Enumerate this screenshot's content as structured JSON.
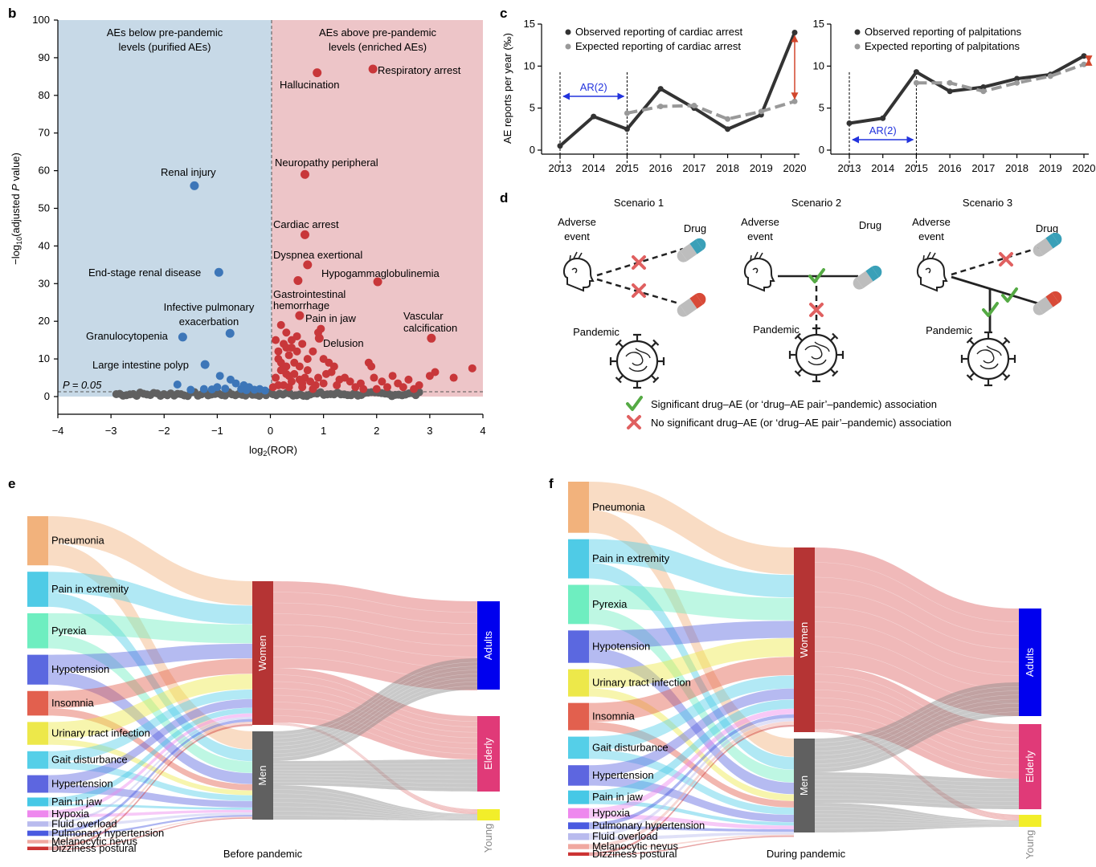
{
  "figure": {
    "bg": "#ffffff"
  },
  "panels": {
    "b": "b",
    "c": "c",
    "d": "d",
    "e": "e",
    "f": "f"
  },
  "colors": {
    "blue_bg": "#c7d9e7",
    "red_bg": "#edc5c8",
    "blue_dot": "#3d76b8",
    "red_dot": "#c8373a",
    "grey_dot": "#606060",
    "arrow_blue": "#2233dd",
    "arrow_red": "#d2462c",
    "check_green": "#55aa44",
    "cross_red": "#e06060"
  },
  "chart_data": [
    {
      "id": "volcano",
      "type": "scatter",
      "xlabel": "log2(ROR)",
      "ylabel": "−log10(adjusted P value)",
      "xlim": [
        -4,
        4
      ],
      "ylim": [
        0,
        100
      ],
      "xticks": [
        "−4",
        "−3",
        "−2",
        "−1",
        "0",
        "1",
        "2",
        "3",
        "4"
      ],
      "yticks": [
        "0",
        "10",
        "20",
        "30",
        "40",
        "50",
        "60",
        "70",
        "80",
        "90",
        "100"
      ],
      "region_left": [
        "AEs below pre-pandemic",
        "levels (purified AEs)"
      ],
      "region_right": [
        "AEs above pre-pandemic",
        "levels (enriched AEs)"
      ],
      "threshold_label": "P = 0.05",
      "threshold": 1.3,
      "labeled_points": [
        {
          "x": 0.88,
          "y": 86,
          "label": "Hallucination",
          "group": "enriched"
        },
        {
          "x": 1.93,
          "y": 87,
          "label": "Respiratory arrest",
          "group": "enriched"
        },
        {
          "x": 0.65,
          "y": 59,
          "label": "Neuropathy peripheral",
          "group": "enriched"
        },
        {
          "x": 0.65,
          "y": 43,
          "label": "Cardiac arrest",
          "group": "enriched"
        },
        {
          "x": 0.7,
          "y": 35,
          "label": "Dyspnea exertional",
          "group": "enriched"
        },
        {
          "x": 2.02,
          "y": 30.5,
          "label": "Hypogammaglobulinemia",
          "group": "enriched"
        },
        {
          "x": 0.52,
          "y": 30.8,
          "label": "Gastrointestinal hemorrhage",
          "group": "enriched"
        },
        {
          "x": 0.55,
          "y": 21.5,
          "label": "Pain in jaw",
          "group": "enriched"
        },
        {
          "x": 3.03,
          "y": 15.5,
          "label": "Vascular calcification",
          "group": "enriched"
        },
        {
          "x": 0.92,
          "y": 15.5,
          "label": "Delusion",
          "group": "enriched"
        },
        {
          "x": -1.43,
          "y": 56,
          "label": "Renal injury",
          "group": "purified"
        },
        {
          "x": -0.97,
          "y": 33,
          "label": "End-stage renal disease",
          "group": "purified"
        },
        {
          "x": -0.76,
          "y": 16.8,
          "label": "Infective pulmonary exacerbation",
          "group": "purified"
        },
        {
          "x": -1.65,
          "y": 15.8,
          "label": "Granulocytopenia",
          "group": "purified"
        },
        {
          "x": -1.23,
          "y": 8.5,
          "label": "Large intestine polyp",
          "group": "purified"
        }
      ],
      "extra_points": {
        "enriched": [
          [
            0.2,
            19
          ],
          [
            0.3,
            17
          ],
          [
            0.25,
            14
          ],
          [
            0.4,
            13
          ],
          [
            0.35,
            11
          ],
          [
            0.15,
            10
          ],
          [
            0.5,
            12
          ],
          [
            0.6,
            14
          ],
          [
            0.45,
            9
          ],
          [
            0.2,
            7
          ],
          [
            0.3,
            6
          ],
          [
            0.1,
            5
          ],
          [
            0.55,
            8
          ],
          [
            0.7,
            10
          ],
          [
            0.8,
            12
          ],
          [
            0.9,
            17
          ],
          [
            0.95,
            18
          ],
          [
            1.0,
            10
          ],
          [
            1.1,
            9
          ],
          [
            1.2,
            8
          ],
          [
            1.05,
            6
          ],
          [
            0.65,
            5
          ],
          [
            0.75,
            4
          ],
          [
            0.4,
            4
          ],
          [
            0.25,
            3
          ],
          [
            0.15,
            3
          ],
          [
            0.05,
            2.5
          ],
          [
            0.35,
            2.5
          ],
          [
            0.6,
            2.5
          ],
          [
            0.85,
            3
          ],
          [
            1.0,
            3.5
          ],
          [
            1.3,
            4.5
          ],
          [
            1.4,
            5
          ],
          [
            1.5,
            4
          ],
          [
            1.7,
            3.5
          ],
          [
            1.85,
            9
          ],
          [
            1.9,
            8
          ],
          [
            1.95,
            5
          ],
          [
            2.1,
            4
          ],
          [
            2.3,
            5.5
          ],
          [
            2.4,
            3.5
          ],
          [
            2.6,
            4.5
          ],
          [
            2.8,
            3
          ],
          [
            3.0,
            5.5
          ],
          [
            3.1,
            6.5
          ],
          [
            3.45,
            5
          ],
          [
            3.8,
            7.5
          ],
          [
            2.2,
            2.5
          ],
          [
            2.5,
            2.5
          ],
          [
            1.6,
            2.5
          ],
          [
            0.45,
            6
          ],
          [
            0.3,
            8
          ],
          [
            0.15,
            12
          ],
          [
            0.5,
            16
          ],
          [
            0.4,
            15
          ],
          [
            0.3,
            13
          ],
          [
            0.1,
            15
          ],
          [
            0.2,
            9
          ],
          [
            0.7,
            7
          ],
          [
            0.9,
            5
          ],
          [
            1.15,
            6.5
          ],
          [
            0.55,
            4.5
          ],
          [
            0.35,
            5.5
          ],
          [
            0.6,
            3.5
          ],
          [
            1.25,
            3
          ],
          [
            0.8,
            2
          ],
          [
            2.0,
            2
          ],
          [
            2.7,
            2
          ],
          [
            1.75,
            2
          ]
        ],
        "purified": [
          [
            -0.95,
            5.5
          ],
          [
            -0.75,
            4.5
          ],
          [
            -1.75,
            3.2
          ],
          [
            -0.5,
            3
          ],
          [
            -0.4,
            2.5
          ],
          [
            -0.2,
            2
          ],
          [
            -0.55,
            2
          ],
          [
            -0.65,
            3.5
          ],
          [
            -1.0,
            2.5
          ],
          [
            -1.25,
            2
          ],
          [
            -0.3,
            1.8
          ],
          [
            -0.1,
            1.6
          ],
          [
            -0.45,
            1.7
          ],
          [
            -0.85,
            2.1
          ],
          [
            -1.1,
            1.9
          ],
          [
            -1.5,
            1.8
          ]
        ],
        "null_range": [
          -2.9,
          2.8
        ]
      }
    },
    {
      "id": "cardiac",
      "type": "line",
      "ylabel": "AE reports per year (‰)",
      "categories": [
        "2013",
        "2014",
        "2015",
        "2016",
        "2017",
        "2018",
        "2019",
        "2020"
      ],
      "ylim": [
        0,
        15
      ],
      "yticks": [
        "0",
        "5",
        "10",
        "15"
      ],
      "series": [
        {
          "name": "Observed reporting of cardiac arrest",
          "values": [
            0.5,
            4.0,
            2.5,
            7.3,
            5.0,
            2.5,
            4.2,
            14.0
          ],
          "color": "#333333",
          "style": "solid"
        },
        {
          "name": "Expected reporting of cardiac arrest",
          "values": [
            null,
            null,
            4.4,
            5.2,
            5.3,
            3.7,
            4.6,
            5.8
          ],
          "color": "#999999",
          "style": "dashed"
        }
      ],
      "ar_label": "AR(2)"
    },
    {
      "id": "palpitations",
      "type": "line",
      "categories": [
        "2013",
        "2014",
        "2015",
        "2016",
        "2017",
        "2018",
        "2019",
        "2020"
      ],
      "ylim": [
        0,
        15
      ],
      "yticks": [
        "0",
        "5",
        "10",
        "15"
      ],
      "series": [
        {
          "name": "Observed reporting of palpitations",
          "values": [
            3.2,
            3.8,
            9.3,
            7.0,
            7.5,
            8.5,
            9.0,
            11.2
          ],
          "color": "#333333",
          "style": "solid"
        },
        {
          "name": "Expected reporting of palpitations",
          "values": [
            null,
            null,
            8.0,
            8.0,
            7.0,
            8.0,
            8.8,
            10.2
          ],
          "color": "#999999",
          "style": "dashed"
        }
      ],
      "ar_label": "AR(2)"
    }
  ],
  "scenarios": {
    "titles": [
      "Scenario 1",
      "Scenario 2",
      "Scenario 3"
    ],
    "adverse_event": [
      "Adverse",
      "event"
    ],
    "drug": "Drug",
    "pandemic": "Pandemic",
    "legend_sig": "Significant drug–AE (or ‘drug–AE pair’–pandemic) association",
    "legend_nonsig": "No significant drug–AE (or ‘drug–AE pair’–pandemic) association"
  },
  "sankey_before": {
    "caption": "Before pandemic",
    "aes": [
      {
        "label": "Pneumonia",
        "color": "#f2b27c"
      },
      {
        "label": "Pain in extremity",
        "color": "#4fcbe6"
      },
      {
        "label": "Pyrexia",
        "color": "#6eeec0"
      },
      {
        "label": "Hypotension",
        "color": "#5b68e0"
      },
      {
        "label": "Insomnia",
        "color": "#e2604e"
      },
      {
        "label": "Urinary tract infection",
        "color": "#ede84a"
      },
      {
        "label": "Gait disturbance",
        "color": "#55cfe8"
      },
      {
        "label": "Hypertension",
        "color": "#5d66e0"
      },
      {
        "label": "Pain in jaw",
        "color": "#46c8e6"
      },
      {
        "label": "Hypoxia",
        "color": "#ee88ee"
      },
      {
        "label": "Fluid overload",
        "color": "#b9bbee"
      },
      {
        "label": "Pulmonary hypertension",
        "color": "#4a5ae0"
      },
      {
        "label": "Melanocytic nevus",
        "color": "#f0a8a0"
      },
      {
        "label": "Dizziness postural",
        "color": "#cc3333"
      }
    ],
    "sex": [
      {
        "label": "Women",
        "color": "#b53434"
      },
      {
        "label": "Men",
        "color": "#606060"
      }
    ],
    "age": [
      {
        "label": "Adults",
        "color": "#0000ee"
      },
      {
        "label": "Elderly",
        "color": "#e03a78"
      },
      {
        "label": "Young",
        "color": "#f2ee2a"
      }
    ]
  },
  "sankey_during": {
    "caption": "During pandemic",
    "aes": [
      {
        "label": "Pneumonia",
        "color": "#f2b27c"
      },
      {
        "label": "Pain in extremity",
        "color": "#4fcbe6"
      },
      {
        "label": "Pyrexia",
        "color": "#6eeec0"
      },
      {
        "label": "Hypotension",
        "color": "#5b68e0"
      },
      {
        "label": "Urinary tract infection",
        "color": "#ede84a"
      },
      {
        "label": "Insomnia",
        "color": "#e2604e"
      },
      {
        "label": "Gait disturbance",
        "color": "#55cfe8"
      },
      {
        "label": "Hypertension",
        "color": "#5d66e0"
      },
      {
        "label": "Pain in jaw",
        "color": "#46c8e6"
      },
      {
        "label": "Hypoxia",
        "color": "#ee88ee"
      },
      {
        "label": "Pulmonary hypertension",
        "color": "#4a5ae0"
      },
      {
        "label": "Fluid overload",
        "color": "#b9bbee"
      },
      {
        "label": "Melanocytic nevus",
        "color": "#f0a8a0"
      },
      {
        "label": "Dizziness postural",
        "color": "#cc3333"
      }
    ],
    "sex": [
      {
        "label": "Women",
        "color": "#b53434"
      },
      {
        "label": "Men",
        "color": "#606060"
      }
    ],
    "age": [
      {
        "label": "Adults",
        "color": "#0000ee"
      },
      {
        "label": "Elderly",
        "color": "#e03a78"
      },
      {
        "label": "Young",
        "color": "#f2ee2a"
      }
    ]
  }
}
